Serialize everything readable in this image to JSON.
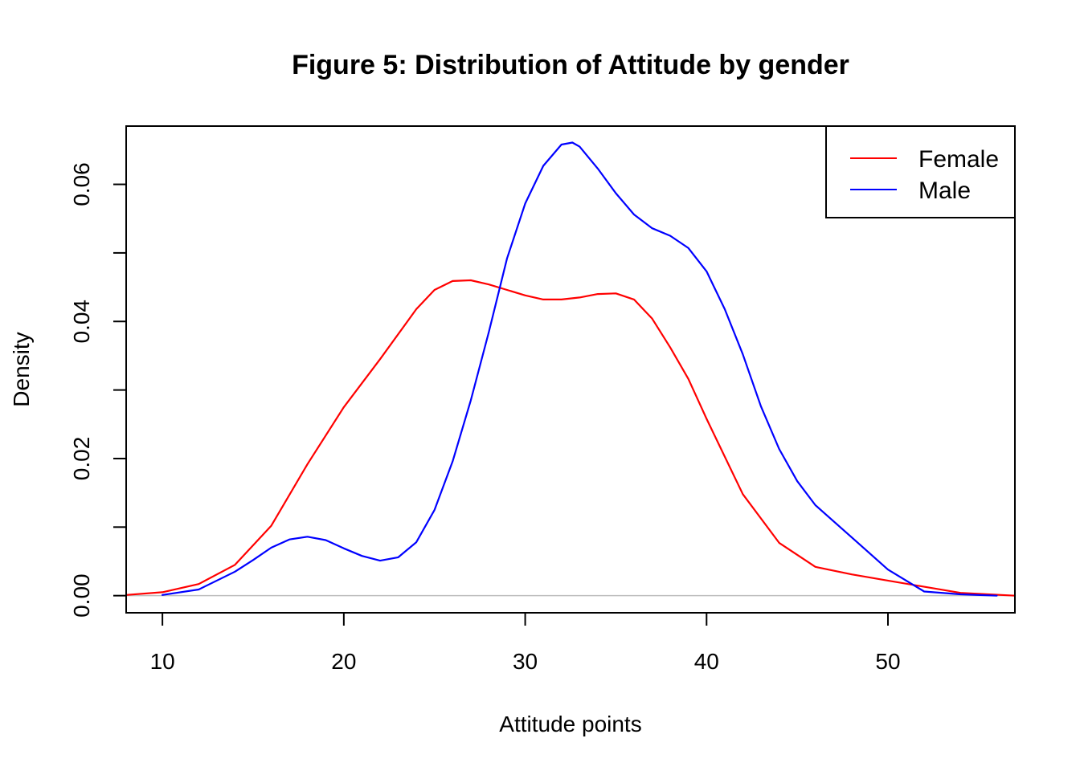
{
  "chart_data": {
    "type": "line",
    "title": "Figure 5: Distribution of Attitude by gender",
    "xlabel": "Attitude points",
    "ylabel": "Density",
    "xlim": [
      8,
      57
    ],
    "ylim": [
      -0.0025,
      0.0685
    ],
    "x_ticks": [
      10,
      20,
      30,
      40,
      50
    ],
    "x_tick_labels": [
      "10",
      "20",
      "30",
      "40",
      "50"
    ],
    "y_ticks": [
      0,
      0.01,
      0.02,
      0.03,
      0.04,
      0.05,
      0.06
    ],
    "y_tick_labels": [
      "0.00",
      "",
      "0.02",
      "",
      "0.04",
      "",
      "0.06"
    ],
    "baseline": 0,
    "legend_position": "top-right",
    "series": [
      {
        "name": "Female",
        "color": "#ff0000",
        "x": [
          8,
          10,
          12,
          14,
          16,
          18,
          20,
          22,
          24,
          25,
          26,
          27,
          28,
          29,
          30,
          31,
          32,
          33,
          34,
          35,
          36,
          37,
          38,
          39,
          40,
          42,
          44,
          46,
          48,
          50,
          52,
          54,
          57
        ],
        "y": [
          0.0001,
          0.0005,
          0.0017,
          0.0045,
          0.0102,
          0.0192,
          0.0275,
          0.0345,
          0.0418,
          0.0446,
          0.0459,
          0.046,
          0.0454,
          0.0446,
          0.0438,
          0.0432,
          0.0432,
          0.0435,
          0.044,
          0.0441,
          0.0432,
          0.0404,
          0.0362,
          0.0316,
          0.0258,
          0.0148,
          0.0077,
          0.0042,
          0.0031,
          0.0022,
          0.0013,
          0.0004,
          0.0
        ]
      },
      {
        "name": "Male",
        "color": "#0000ff",
        "x": [
          10,
          12,
          14,
          15,
          16,
          17,
          18,
          19,
          20,
          21,
          22,
          23,
          24,
          25,
          26,
          27,
          28,
          29,
          30,
          31,
          32,
          32.6,
          33,
          34,
          35,
          36,
          37,
          38,
          39,
          40,
          41,
          42,
          43,
          44,
          45,
          46,
          48,
          50,
          52,
          54,
          56
        ],
        "y": [
          0.0001,
          0.0009,
          0.0035,
          0.0052,
          0.007,
          0.0082,
          0.0086,
          0.0081,
          0.0069,
          0.0058,
          0.0051,
          0.0056,
          0.0078,
          0.0125,
          0.0196,
          0.0285,
          0.0385,
          0.0492,
          0.0572,
          0.0627,
          0.0658,
          0.0661,
          0.0655,
          0.0623,
          0.0587,
          0.0556,
          0.0536,
          0.0525,
          0.0507,
          0.0473,
          0.0418,
          0.0352,
          0.0276,
          0.0214,
          0.0167,
          0.0132,
          0.0085,
          0.0038,
          0.0006,
          0.0002,
          0.0
        ]
      }
    ]
  },
  "colors": {
    "frame": "#000000",
    "baseline": "#bebebe"
  }
}
